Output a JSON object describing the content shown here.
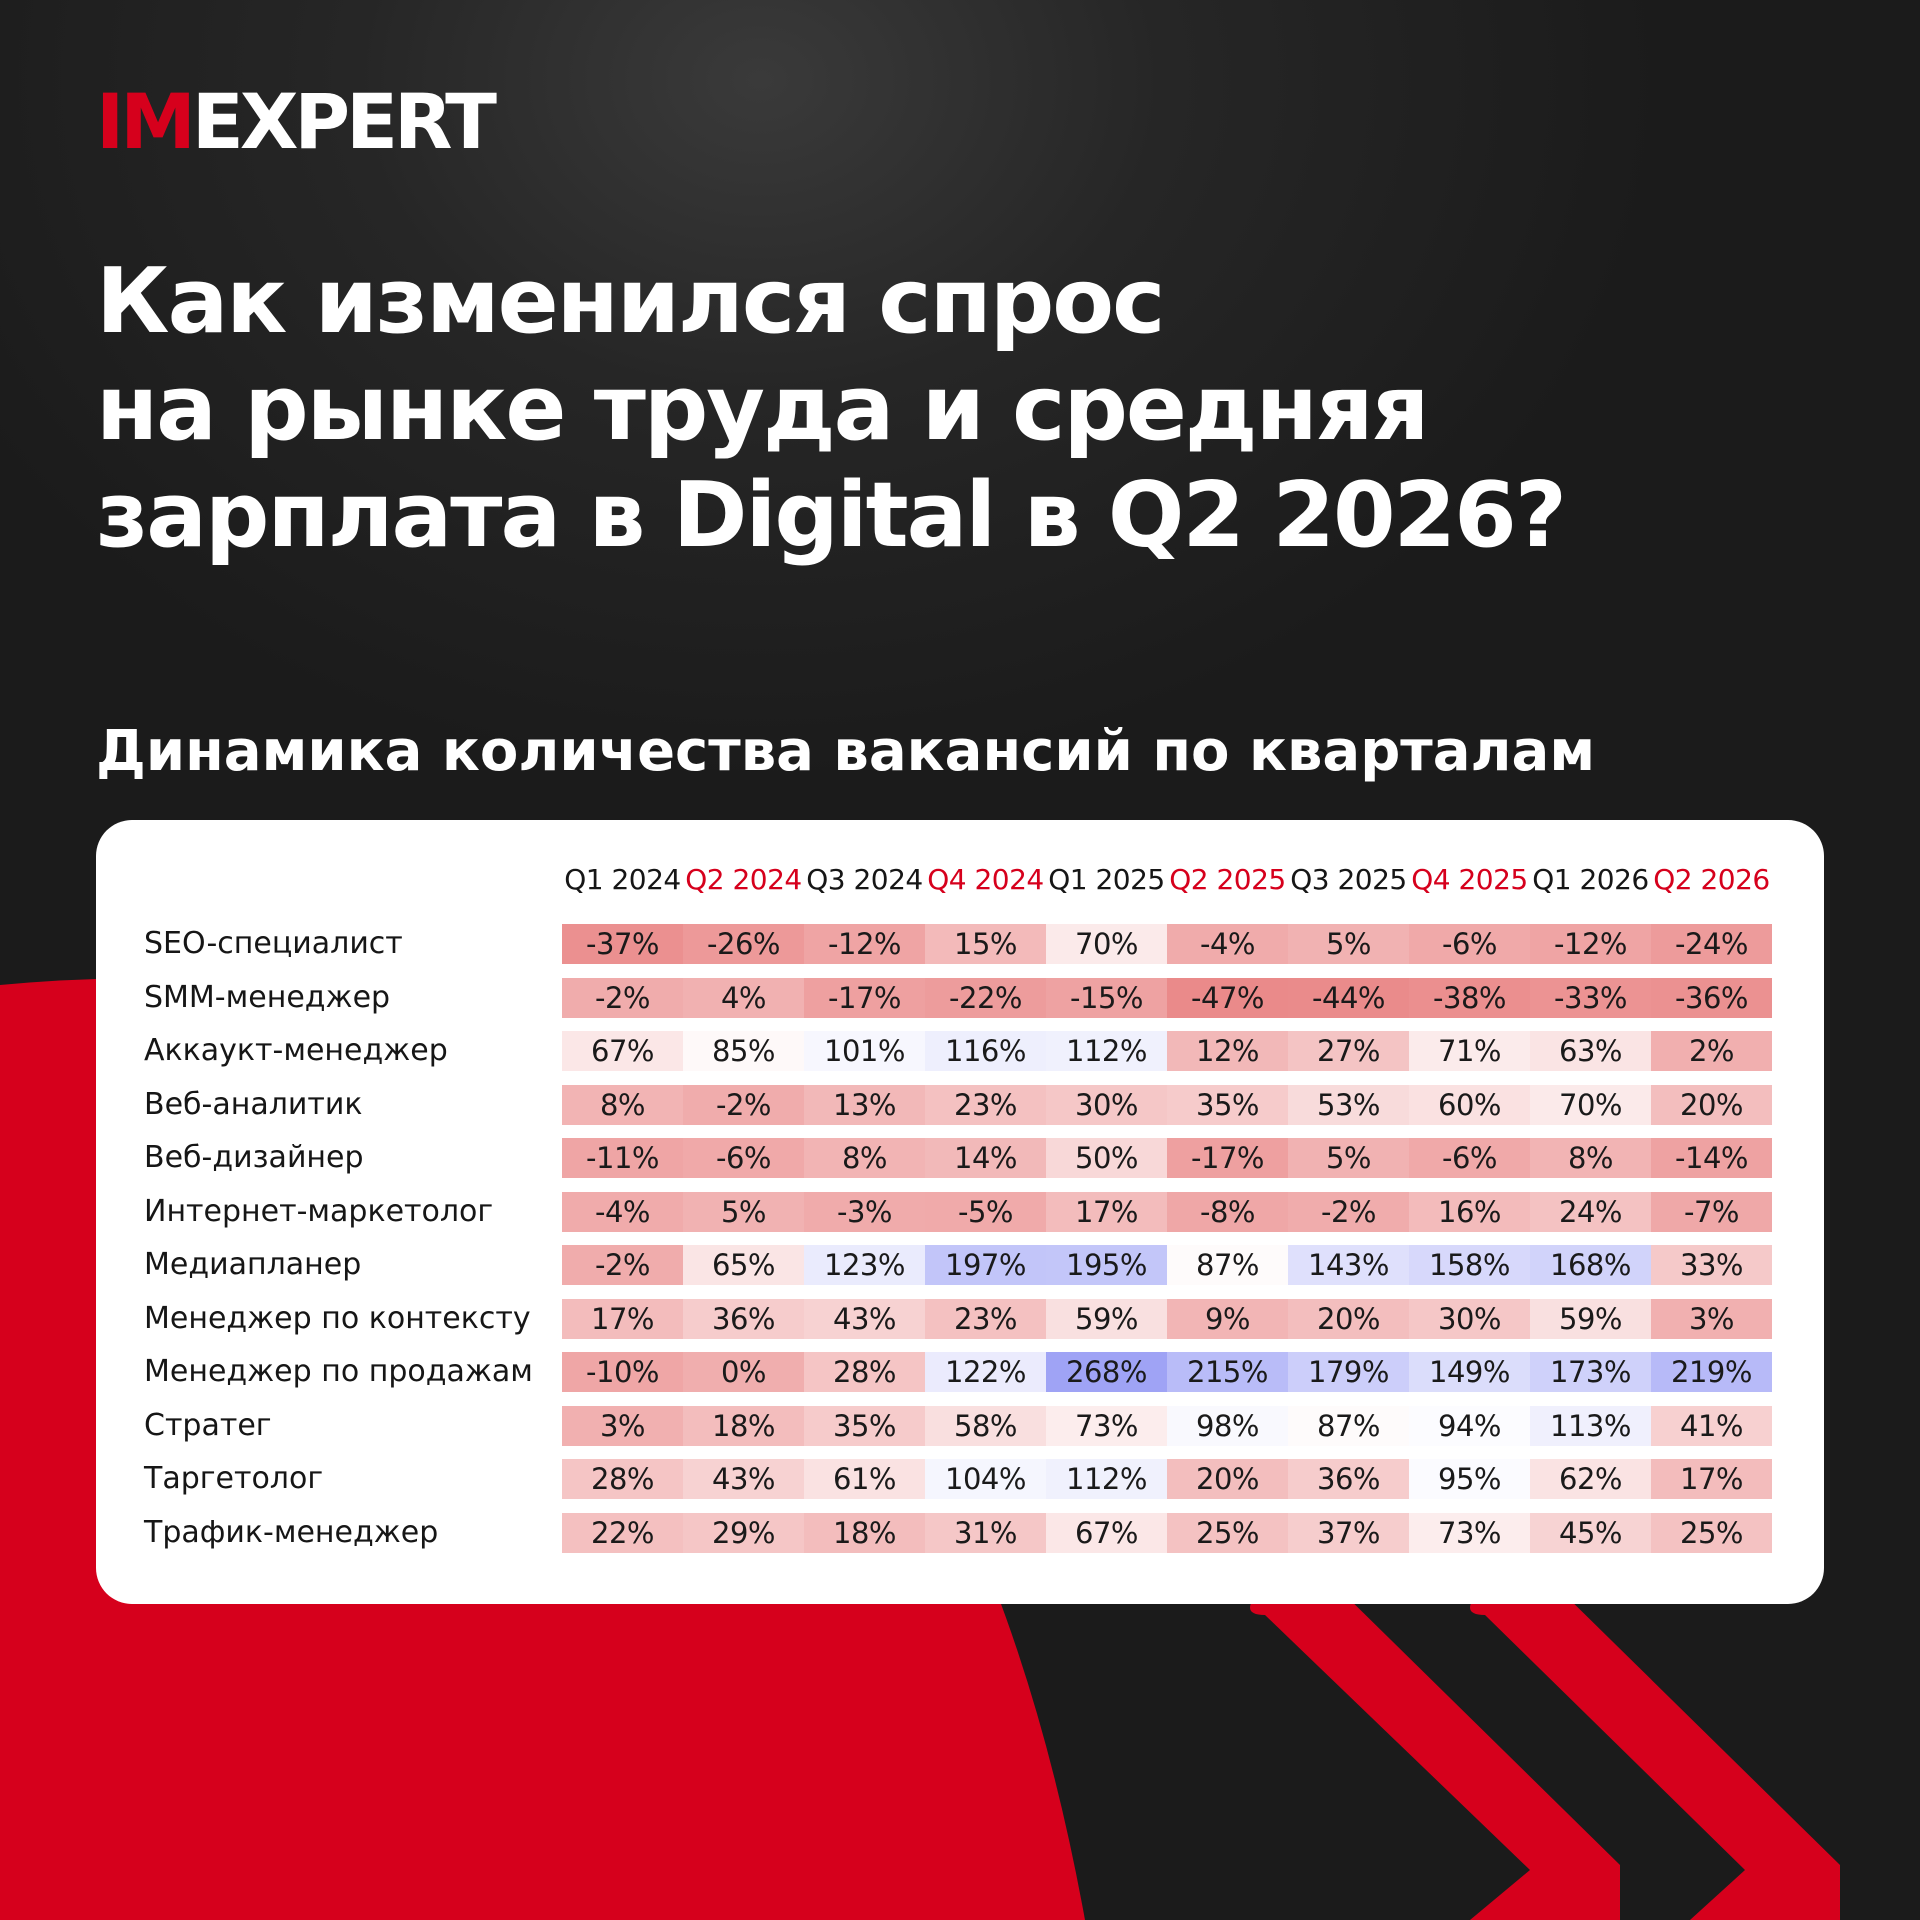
{
  "brand": {
    "logo_accent": "IM",
    "logo_rest": "EXPERT"
  },
  "title_lines": [
    "Как изменился спрос",
    "на рынке труда и средняя",
    "зарплата в Digital в Q2 2026?"
  ],
  "colors": {
    "accent": "#d6001c",
    "background": "#1e1e1e",
    "card": "#ffffff",
    "negative": "#ea8a8a",
    "positive": "#9ea2f5"
  },
  "chart_data": {
    "type": "heatmap",
    "title": "Динамика количества вакансий по кварталам",
    "columns": [
      "Q1 2024",
      "Q2 2024",
      "Q3 2024",
      "Q4 2024",
      "Q1 2025",
      "Q2 2025",
      "Q3 2025",
      "Q4 2025",
      "Q1 2026",
      "Q2 2026"
    ],
    "highlighted_columns": [
      "Q2 2024",
      "Q4 2024",
      "Q2 2025",
      "Q4 2025",
      "Q2 2026"
    ],
    "rows": [
      {
        "label": "SEO-специалист",
        "values": [
          -37,
          -26,
          -12,
          15,
          70,
          -4,
          5,
          -6,
          -12,
          -24
        ]
      },
      {
        "label": "SMM-менеджер",
        "values": [
          -2,
          4,
          -17,
          -22,
          -15,
          -47,
          -44,
          -38,
          -33,
          -36
        ]
      },
      {
        "label": "Аккаукт-менеджер",
        "values": [
          67,
          85,
          101,
          116,
          112,
          12,
          27,
          71,
          63,
          2
        ]
      },
      {
        "label": "Веб-аналитик",
        "values": [
          8,
          -2,
          13,
          23,
          30,
          35,
          53,
          60,
          70,
          20
        ]
      },
      {
        "label": "Веб-дизайнер",
        "values": [
          -11,
          -6,
          8,
          14,
          50,
          -17,
          5,
          -6,
          8,
          -14
        ]
      },
      {
        "label": "Интернет-маркетолог",
        "values": [
          -4,
          5,
          -3,
          -5,
          17,
          -8,
          -2,
          16,
          24,
          -7
        ]
      },
      {
        "label": "Медиапланер",
        "values": [
          -2,
          65,
          123,
          197,
          195,
          87,
          143,
          158,
          168,
          33
        ]
      },
      {
        "label": "Менеджер по контексту",
        "values": [
          17,
          36,
          43,
          23,
          59,
          9,
          20,
          30,
          59,
          3
        ]
      },
      {
        "label": "Менеджер по продажам",
        "values": [
          -10,
          0,
          28,
          122,
          268,
          215,
          179,
          149,
          173,
          219
        ]
      },
      {
        "label": "Стратег",
        "values": [
          3,
          18,
          35,
          58,
          73,
          98,
          87,
          94,
          113,
          41
        ]
      },
      {
        "label": "Таргетолог",
        "values": [
          28,
          43,
          61,
          104,
          112,
          20,
          36,
          95,
          62,
          17
        ]
      },
      {
        "label": "Трафик-менеджер",
        "values": [
          22,
          29,
          18,
          31,
          67,
          25,
          37,
          73,
          45,
          25
        ]
      }
    ],
    "value_format": "percent",
    "color_scale": {
      "low": "#ea8a8a",
      "mid": "#ffffff",
      "high": "#9ea2f5",
      "mid_value": 90
    }
  }
}
